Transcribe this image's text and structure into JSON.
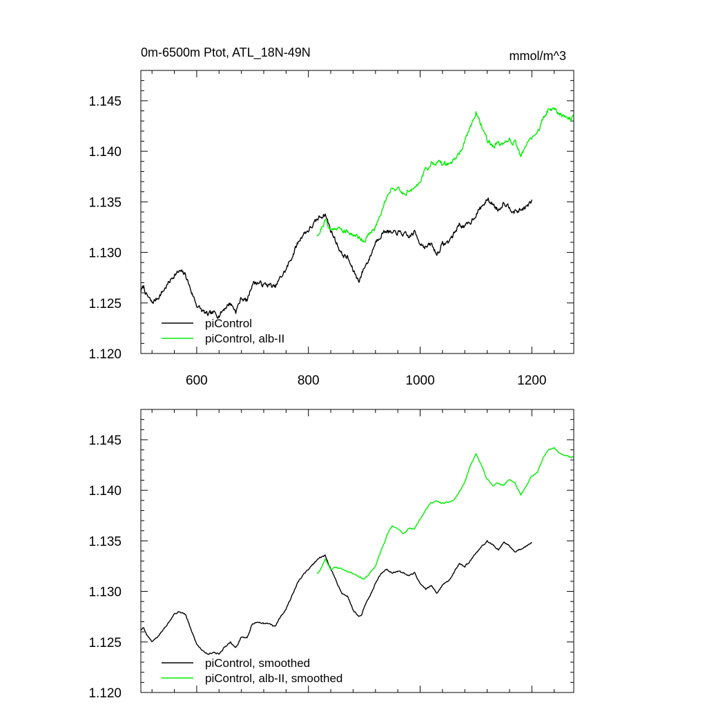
{
  "colors": {
    "control": "#000000",
    "alb": "#00ee00",
    "background": "#ffffff"
  },
  "chart_data": [
    {
      "type": "line",
      "title": "0m-6500m Ptot, ATL_18N-49N",
      "units": "mmol/m^3",
      "xlim": [
        500,
        1275
      ],
      "ylim": [
        1.12,
        1.148
      ],
      "xticks": [
        600,
        800,
        1000,
        1200
      ],
      "xtick_labels": [
        "600",
        "800",
        "1000",
        "1200"
      ],
      "yticks": [
        1.12,
        1.125,
        1.13,
        1.135,
        1.14,
        1.145
      ],
      "ytick_labels": [
        "1.120",
        "1.125",
        "1.130",
        "1.135",
        "1.140",
        "1.145"
      ],
      "legend": [
        "piControl",
        "piControl, alb-II"
      ],
      "series": [
        {
          "name": "piControl",
          "color_key": "control",
          "noise": 0.0004,
          "seed": 7,
          "x": [
            500,
            505,
            510,
            520,
            530,
            540,
            550,
            560,
            570,
            580,
            590,
            600,
            610,
            620,
            630,
            640,
            650,
            660,
            670,
            680,
            690,
            700,
            710,
            720,
            730,
            740,
            750,
            760,
            770,
            780,
            790,
            800,
            810,
            820,
            830,
            840,
            850,
            860,
            870,
            880,
            890,
            895,
            900,
            910,
            920,
            930,
            940,
            950,
            960,
            970,
            980,
            990,
            1000,
            1010,
            1020,
            1030,
            1040,
            1050,
            1060,
            1070,
            1080,
            1090,
            1100,
            1110,
            1120,
            1130,
            1140,
            1150,
            1160,
            1170,
            1180,
            1190,
            1200
          ],
          "y": [
            1.1262,
            1.1266,
            1.1258,
            1.125,
            1.1255,
            1.1262,
            1.127,
            1.1278,
            1.1281,
            1.1278,
            1.1262,
            1.1248,
            1.1242,
            1.1238,
            1.124,
            1.1238,
            1.1245,
            1.125,
            1.1242,
            1.1255,
            1.1252,
            1.127,
            1.127,
            1.1268,
            1.1268,
            1.1265,
            1.1275,
            1.1283,
            1.1295,
            1.1308,
            1.1318,
            1.1322,
            1.1328,
            1.1335,
            1.1338,
            1.1322,
            1.131,
            1.1298,
            1.1295,
            1.1282,
            1.1272,
            1.1278,
            1.1285,
            1.1295,
            1.131,
            1.1318,
            1.1322,
            1.1318,
            1.132,
            1.1318,
            1.1315,
            1.132,
            1.131,
            1.1305,
            1.1308,
            1.1298,
            1.1308,
            1.131,
            1.1318,
            1.1328,
            1.1325,
            1.133,
            1.1338,
            1.1345,
            1.1352,
            1.1348,
            1.1342,
            1.135,
            1.1345,
            1.134,
            1.1342,
            1.1345,
            1.135
          ]
        },
        {
          "name": "piControl, alb-II",
          "color_key": "alb",
          "noise": 0.0004,
          "seed": 21,
          "x": [
            815,
            820,
            830,
            840,
            850,
            860,
            870,
            880,
            890,
            900,
            910,
            920,
            930,
            940,
            950,
            960,
            970,
            980,
            990,
            1000,
            1010,
            1020,
            1030,
            1040,
            1050,
            1060,
            1070,
            1080,
            1090,
            1100,
            1110,
            1120,
            1130,
            1140,
            1150,
            1160,
            1170,
            1180,
            1190,
            1200,
            1210,
            1220,
            1230,
            1240,
            1250,
            1260,
            1270,
            1275
          ],
          "y": [
            1.1318,
            1.132,
            1.1332,
            1.1322,
            1.1325,
            1.1322,
            1.132,
            1.1318,
            1.1315,
            1.1312,
            1.1318,
            1.1325,
            1.134,
            1.1355,
            1.1365,
            1.1362,
            1.1358,
            1.1362,
            1.1362,
            1.1372,
            1.1382,
            1.1388,
            1.139,
            1.1387,
            1.1388,
            1.139,
            1.1398,
            1.1408,
            1.1425,
            1.1438,
            1.1425,
            1.1412,
            1.1405,
            1.1408,
            1.1405,
            1.1412,
            1.1408,
            1.1395,
            1.1405,
            1.1415,
            1.1418,
            1.1432,
            1.1442,
            1.1442,
            1.1438,
            1.1435,
            1.1432,
            1.1433
          ]
        }
      ]
    },
    {
      "type": "line",
      "title": "",
      "xlim": [
        500,
        1275
      ],
      "ylim": [
        1.12,
        1.148
      ],
      "xticks": [
        600,
        800,
        1000,
        1200
      ],
      "yticks": [
        1.12,
        1.125,
        1.13,
        1.135,
        1.14,
        1.145
      ],
      "ytick_labels": [
        "1.120",
        "1.125",
        "1.130",
        "1.135",
        "1.140",
        "1.145"
      ],
      "legend": [
        "piControl, smoothed",
        "piControl, alb-II, smoothed"
      ],
      "series": [
        {
          "name": "piControl, smoothed",
          "color_key": "control",
          "noise": 0.00012,
          "seed": 5,
          "x": [
            500,
            505,
            510,
            520,
            530,
            540,
            550,
            560,
            570,
            580,
            590,
            600,
            610,
            620,
            630,
            640,
            650,
            660,
            670,
            680,
            690,
            700,
            710,
            720,
            730,
            740,
            750,
            760,
            770,
            780,
            790,
            800,
            810,
            820,
            830,
            840,
            850,
            860,
            870,
            880,
            890,
            895,
            900,
            910,
            920,
            930,
            940,
            950,
            960,
            970,
            980,
            990,
            1000,
            1010,
            1020,
            1030,
            1040,
            1050,
            1060,
            1070,
            1080,
            1090,
            1100,
            1110,
            1120,
            1130,
            1140,
            1150,
            1160,
            1170,
            1180,
            1190,
            1200
          ],
          "y": [
            1.1262,
            1.1264,
            1.1258,
            1.125,
            1.1255,
            1.1262,
            1.127,
            1.1278,
            1.128,
            1.1277,
            1.1262,
            1.1248,
            1.1242,
            1.1238,
            1.124,
            1.1238,
            1.1245,
            1.125,
            1.1244,
            1.1255,
            1.1254,
            1.1268,
            1.127,
            1.1268,
            1.1268,
            1.1265,
            1.1275,
            1.1283,
            1.1295,
            1.1308,
            1.1316,
            1.1322,
            1.1328,
            1.1333,
            1.1335,
            1.1322,
            1.131,
            1.1298,
            1.1295,
            1.1282,
            1.1275,
            1.1277,
            1.1285,
            1.1295,
            1.1308,
            1.1318,
            1.1322,
            1.1318,
            1.132,
            1.1318,
            1.1315,
            1.1318,
            1.1308,
            1.1302,
            1.1306,
            1.1298,
            1.1306,
            1.131,
            1.1318,
            1.1328,
            1.1325,
            1.133,
            1.1338,
            1.1344,
            1.135,
            1.1346,
            1.1341,
            1.1349,
            1.1345,
            1.1339,
            1.1342,
            1.1345,
            1.1348
          ]
        },
        {
          "name": "piControl, alb-II, smoothed",
          "color_key": "alb",
          "noise": 0.00012,
          "seed": 11,
          "x": [
            815,
            820,
            830,
            840,
            850,
            860,
            870,
            880,
            890,
            900,
            910,
            920,
            930,
            940,
            950,
            960,
            970,
            980,
            990,
            1000,
            1010,
            1020,
            1030,
            1040,
            1050,
            1060,
            1070,
            1080,
            1090,
            1100,
            1110,
            1120,
            1130,
            1140,
            1150,
            1160,
            1170,
            1180,
            1190,
            1200,
            1210,
            1220,
            1230,
            1240,
            1250,
            1260,
            1270,
            1275
          ],
          "y": [
            1.1318,
            1.132,
            1.1332,
            1.1322,
            1.1324,
            1.1322,
            1.132,
            1.1318,
            1.1315,
            1.1312,
            1.1318,
            1.1325,
            1.134,
            1.1355,
            1.1365,
            1.1362,
            1.1357,
            1.1362,
            1.1362,
            1.1372,
            1.1381,
            1.1388,
            1.1389,
            1.1387,
            1.1388,
            1.139,
            1.1398,
            1.1408,
            1.1424,
            1.1436,
            1.1424,
            1.1411,
            1.1405,
            1.1407,
            1.1405,
            1.1411,
            1.1407,
            1.1395,
            1.1404,
            1.1414,
            1.1418,
            1.1431,
            1.1441,
            1.1442,
            1.1437,
            1.1435,
            1.1432,
            1.1433
          ]
        }
      ]
    }
  ]
}
